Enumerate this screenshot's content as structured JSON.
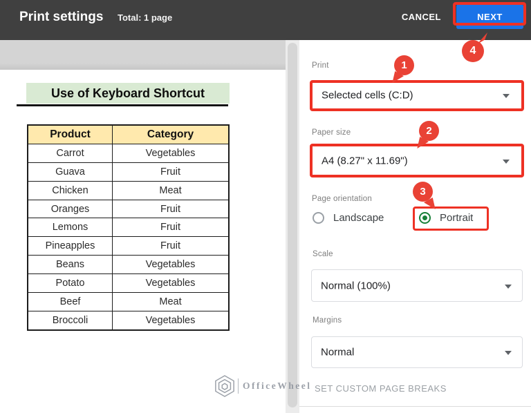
{
  "header": {
    "title": "Print settings",
    "total": "Total: 1 page",
    "cancel_label": "CANCEL",
    "next_label": "NEXT"
  },
  "preview": {
    "sheet_title": "Use of Keyboard Shortcut",
    "table": {
      "headers": [
        "Product",
        "Category"
      ],
      "rows": [
        [
          "Carrot",
          "Vegetables"
        ],
        [
          "Guava",
          "Fruit"
        ],
        [
          "Chicken",
          "Meat"
        ],
        [
          "Oranges",
          "Fruit"
        ],
        [
          "Lemons",
          "Fruit"
        ],
        [
          "Pineapples",
          "Fruit"
        ],
        [
          "Beans",
          "Vegetables"
        ],
        [
          "Potato",
          "Vegetables"
        ],
        [
          "Beef",
          "Meat"
        ],
        [
          "Broccoli",
          "Vegetables"
        ]
      ]
    }
  },
  "panel": {
    "print": {
      "label": "Print",
      "value": "Selected cells (C:D)"
    },
    "paper_size": {
      "label": "Paper size",
      "value": "A4 (8.27\" x 11.69\")"
    },
    "page_orientation": {
      "label": "Page orientation",
      "options": [
        {
          "label": "Landscape",
          "selected": false
        },
        {
          "label": "Portrait",
          "selected": true
        }
      ]
    },
    "scale": {
      "label": "Scale",
      "value": "Normal (100%)"
    },
    "margins": {
      "label": "Margins",
      "value": "Normal"
    },
    "page_breaks_label": "SET CUSTOM PAGE BREAKS"
  },
  "annotations": {
    "badges": [
      "1",
      "2",
      "3",
      "4"
    ]
  },
  "watermark": {
    "text": "OfficeWheel"
  },
  "colors": {
    "topbar_bg": "#404040",
    "accent_blue": "#1a73e8",
    "annotation_red": "#ee3124",
    "pin_red": "#e94235",
    "radio_green": "#188038",
    "sheet_title_bg": "#d9ead3",
    "table_header_bg": "#ffe9ad"
  }
}
